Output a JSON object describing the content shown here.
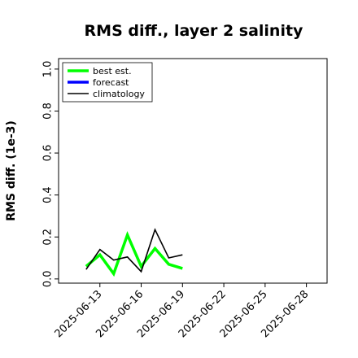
{
  "chart_data": {
    "type": "line",
    "title": "RMS diff., layer 2 salinity",
    "ylabel": "RMS diff. (1e-3)",
    "xlabel": "",
    "ylim": [
      -0.02,
      1.05
    ],
    "yticks": [
      "0.0",
      "0.2",
      "0.4",
      "0.6",
      "0.8",
      "1.0"
    ],
    "yticks_values": [
      0.0,
      0.2,
      0.4,
      0.6,
      0.8,
      1.0
    ],
    "xlim": [
      "2025-06-10T00:00",
      "2025-06-29T12:00"
    ],
    "xticks": [
      "2025-06-13",
      "2025-06-16",
      "2025-06-19",
      "2025-06-22",
      "2025-06-25",
      "2025-06-28"
    ],
    "xticks_colors": [
      "#000000",
      "#000000",
      "#228b22",
      "#000000",
      "#000000",
      "#000000"
    ],
    "legend": {
      "location": "upper-left",
      "entries": [
        "best est.",
        "forecast",
        "climatology"
      ]
    },
    "series": [
      {
        "name": "best est.",
        "color": "#00ff00",
        "x": [
          "2025-06-12",
          "2025-06-13",
          "2025-06-14",
          "2025-06-15",
          "2025-06-16",
          "2025-06-17",
          "2025-06-18",
          "2025-06-19"
        ],
        "values": [
          0.06,
          0.115,
          0.025,
          0.21,
          0.06,
          0.145,
          0.07,
          0.05
        ]
      },
      {
        "name": "forecast",
        "color": "#0000ff",
        "x": [],
        "values": []
      },
      {
        "name": "climatology",
        "color": "#000000",
        "x": [
          "2025-06-12",
          "2025-06-13",
          "2025-06-14",
          "2025-06-15",
          "2025-06-16",
          "2025-06-17",
          "2025-06-18",
          "2025-06-19"
        ],
        "values": [
          0.045,
          0.14,
          0.09,
          0.105,
          0.035,
          0.235,
          0.1,
          0.115
        ]
      }
    ]
  }
}
